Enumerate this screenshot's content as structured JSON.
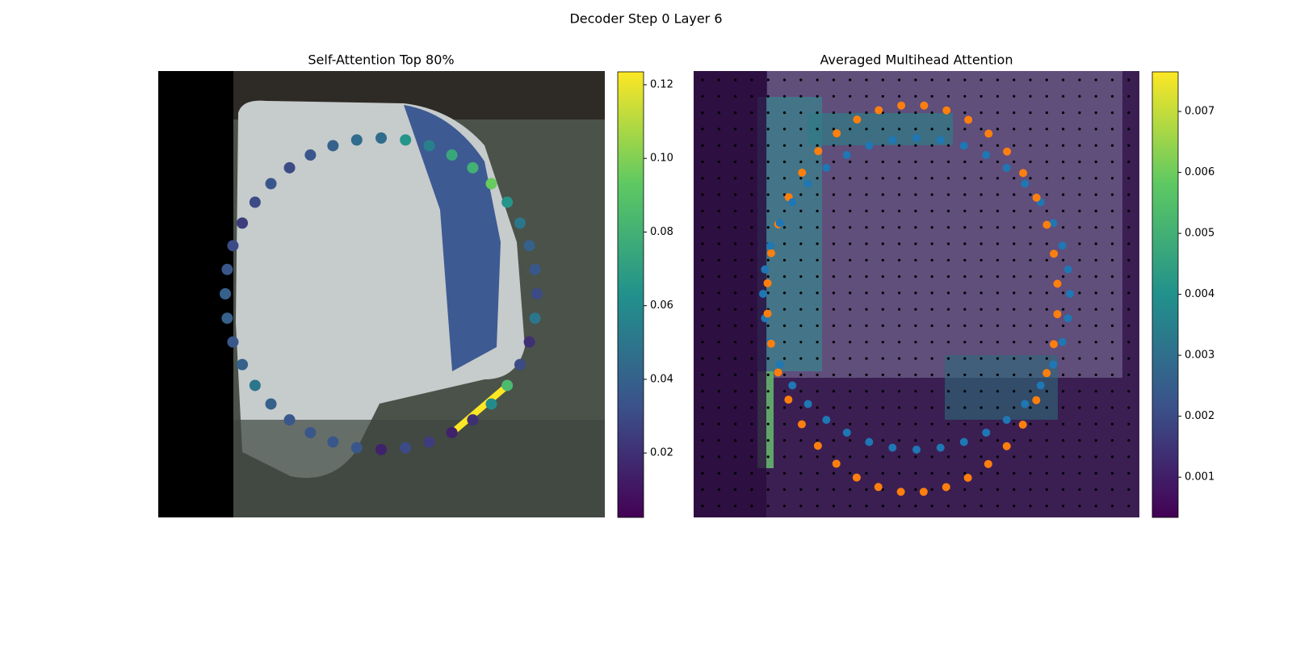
{
  "title": "Decoder Step 0 Layer 6",
  "chart_data": [
    {
      "type": "scatter",
      "title": "Self-Attention Top 80%",
      "colormap": "viridis",
      "values": [
        0.045,
        0.065,
        0.055,
        0.075,
        0.08,
        0.095,
        0.065,
        0.05,
        0.04,
        0.035,
        0.03,
        0.05,
        0.02,
        0.03,
        0.085,
        0.06,
        0.02,
        0.015,
        0.025,
        0.03,
        0.015,
        0.035,
        0.035,
        0.035,
        0.035,
        0.04,
        0.05,
        0.04,
        0.035,
        0.04,
        0.04,
        0.035,
        0.03,
        0.025,
        0.03,
        0.035,
        0.03,
        0.035,
        0.04,
        0.045
      ],
      "ylim": [
        0.0025,
        0.1235
      ],
      "yticks": [
        0.02,
        0.04,
        0.06,
        0.08,
        {
          "value": 0.1,
          "label": "0.10"
        },
        0.12
      ]
    },
    {
      "type": "heatmap",
      "title": "Averaged Multihead Attention",
      "colormap": "viridis",
      "ylim": [
        0.00034,
        0.00765
      ],
      "yticks": [
        0.001,
        0.002,
        0.003,
        0.004,
        0.005,
        0.006,
        0.007
      ]
    }
  ]
}
